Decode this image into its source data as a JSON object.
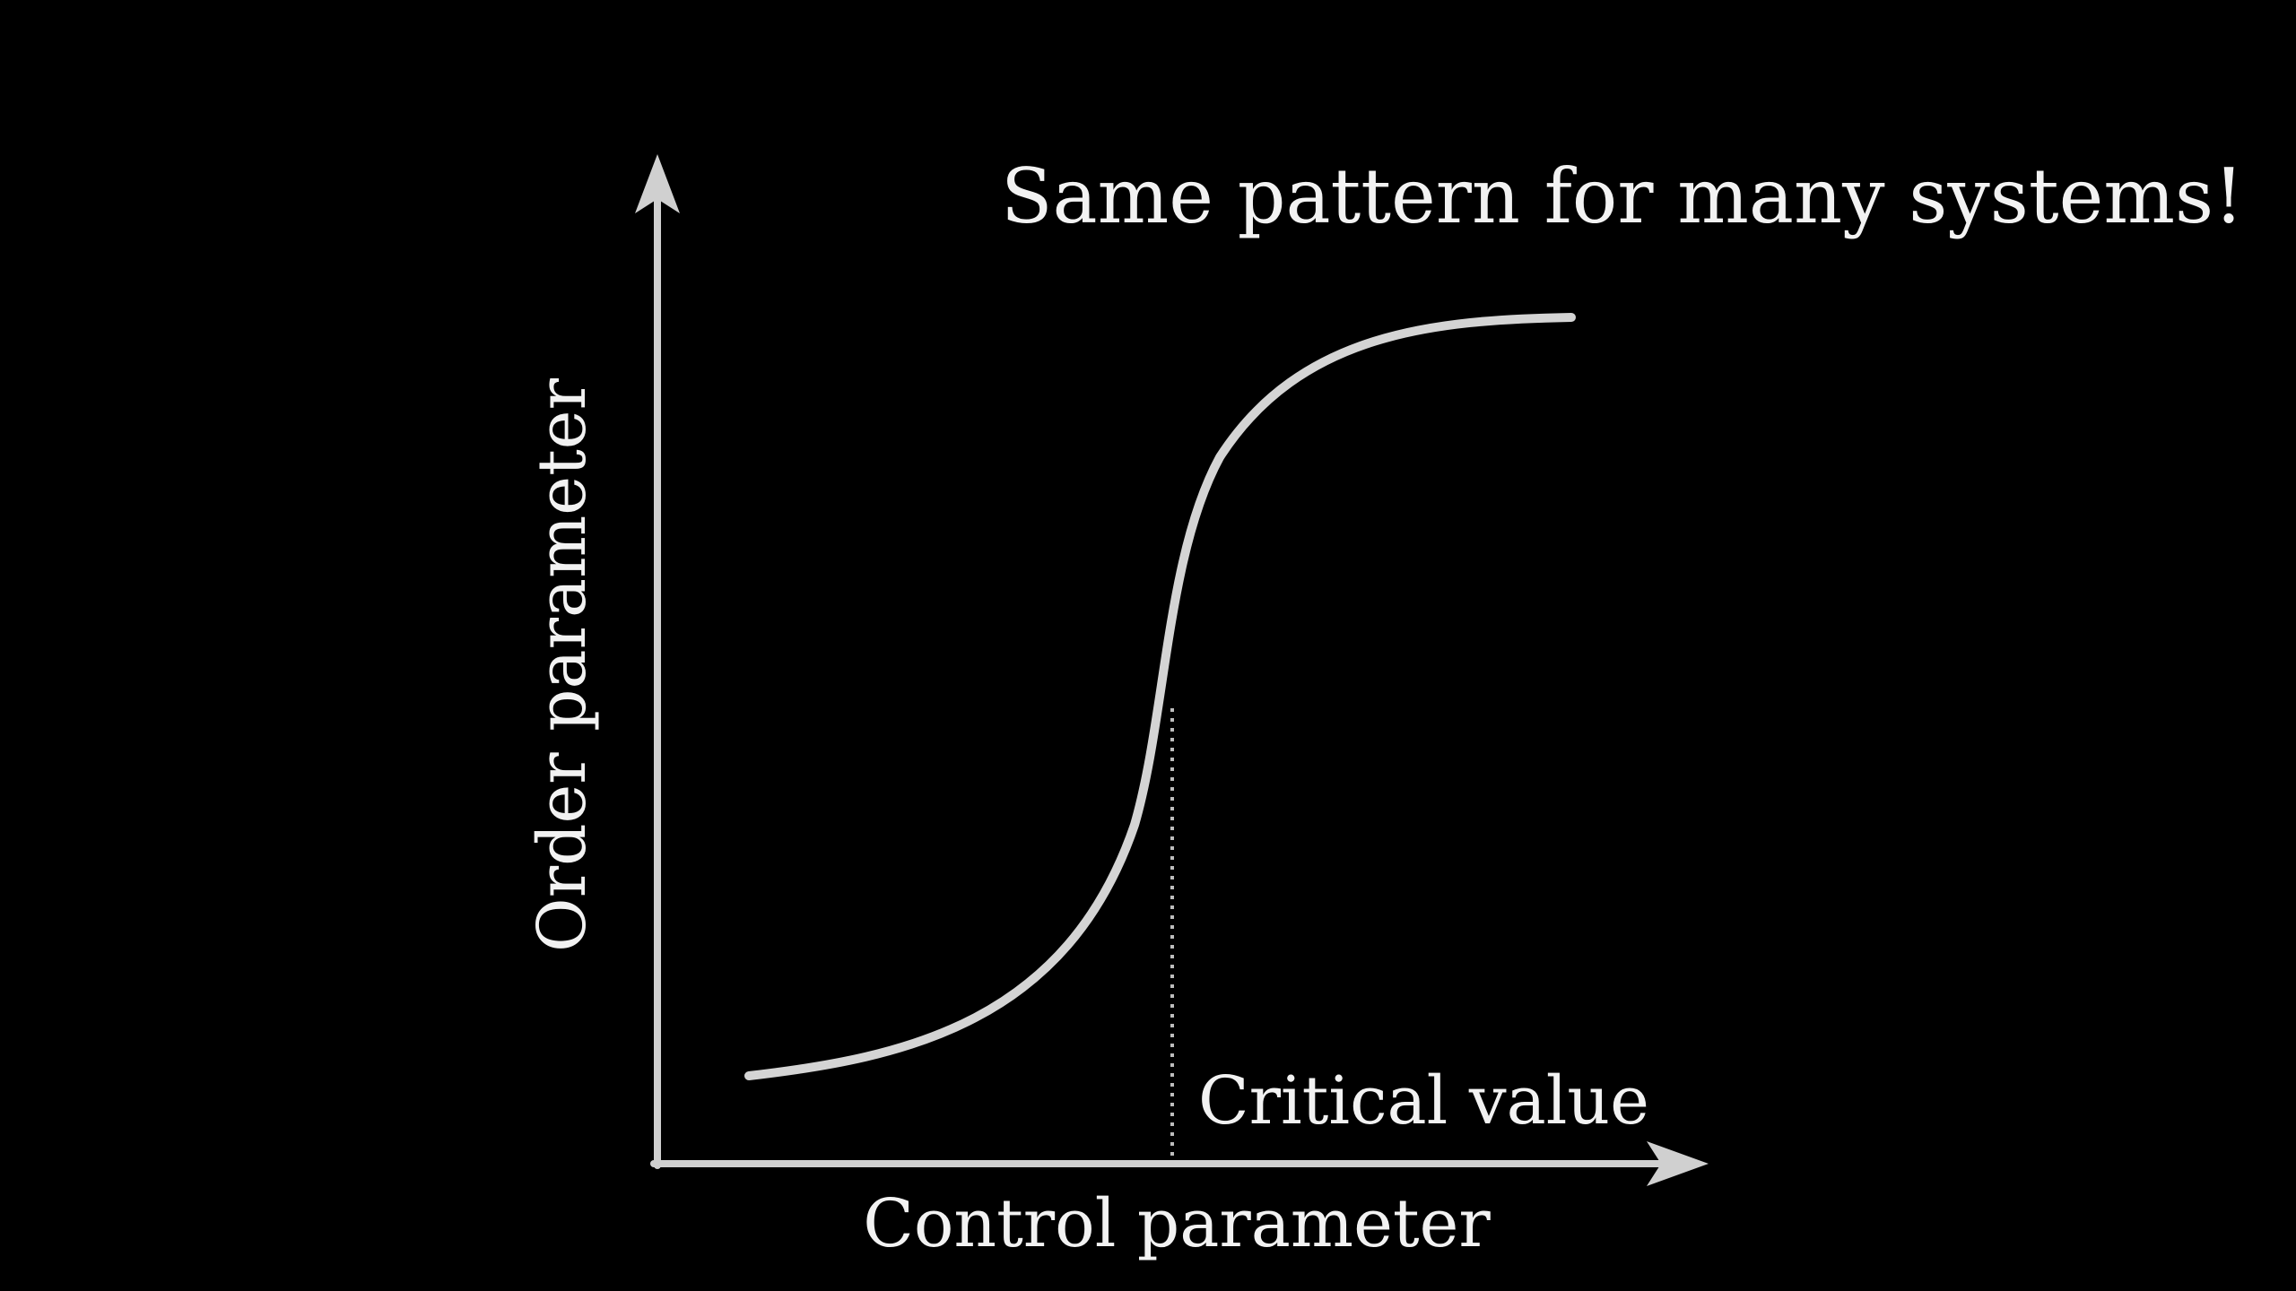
{
  "headline": "Same pattern for many systems!",
  "x_axis_label": "Control parameter",
  "y_axis_label": "Order parameter",
  "critical_label": "Critical value",
  "colors": {
    "background": "#000000",
    "text": "#f2f2f2",
    "curve": "#d4d4d4",
    "axis": "#d0d0d0",
    "guide": "#bdbdbd"
  }
}
